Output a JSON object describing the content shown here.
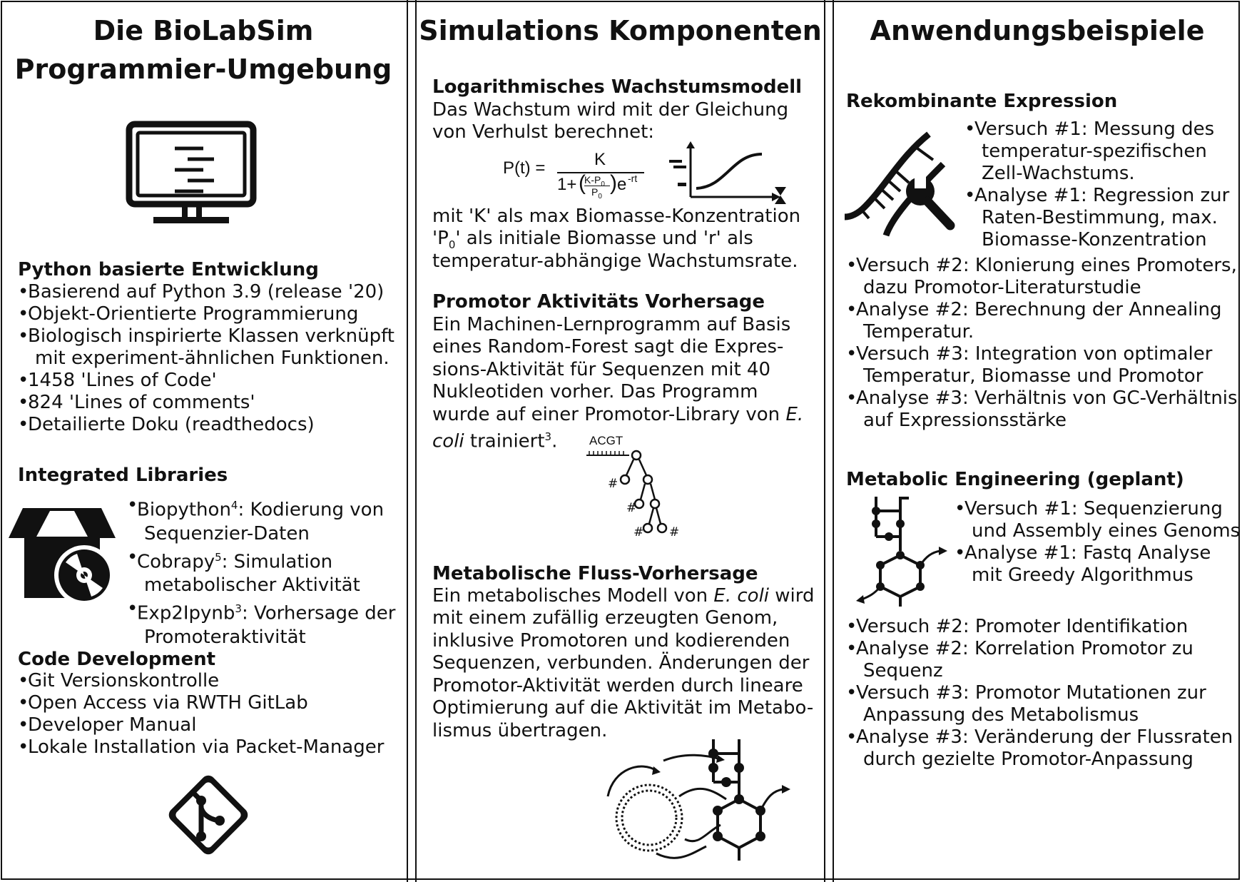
{
  "columns": [
    {
      "title_line1": "Die BioLabSim",
      "title_line2": "Programmier-Umgebung",
      "sections": [
        {
          "heading": "Python basierte Entwicklung",
          "items": [
            [
              "Basierend auf Python 3.9 (release '20)"
            ],
            [
              "Objekt-Orientierte Programmierung"
            ],
            [
              "Biologisch inspirierte Klassen verknüpft",
              "mit experiment-ähnlichen Funktionen."
            ],
            [
              "1458 'Lines of Code'"
            ],
            [
              "824 'Lines of comments'"
            ],
            [
              "Detailierte Doku (readthedocs)"
            ]
          ]
        },
        {
          "heading": "Integrated Libraries",
          "items": [
            [
              "Biopython",
              "4",
              ": Kodierung von",
              "Sequenzier-Daten"
            ],
            [
              "Cobrapy",
              "5",
              ": Simulation",
              "metabolischer Aktivität"
            ],
            [
              "Exp2Ipynb",
              "3",
              ": Vorhersage der",
              "Promoteraktivität"
            ]
          ]
        },
        {
          "heading": "Code Development",
          "items": [
            [
              "Git Versionskontrolle"
            ],
            [
              "Open Access via RWTH GitLab"
            ],
            [
              "Developer Manual"
            ],
            [
              "Lokale Installation via Packet-Manager"
            ]
          ]
        }
      ]
    },
    {
      "title": "Simulations Komponenten",
      "sections": [
        {
          "heading": "Logarithmisches Wachstumsmodell",
          "lines_before": [
            "Das Wachstum wird mit der Gleichung",
            "von Verhulst berechnet:"
          ],
          "lines_after": [
            "mit 'K' als max Biomasse-Konzentration",
            "als initiale Biomasse und 'r' als",
            "temperatur-abhängige Wachstumsrate."
          ],
          "p0_prefix": "'P",
          "p0_sub": "0",
          "p0_suffix": "'"
        },
        {
          "heading": "Promotor Aktivitäts Vorhersage",
          "lines": [
            "Ein Machinen-Lernprogramm auf Basis",
            "eines Random-Forest sagt die Expres-",
            "sions-Aktivität für Sequenzen mit 40",
            "Nukleotiden vorher. Das Programm",
            "wurde auf einer Promotor-Library von"
          ],
          "ecoli_e": "E.",
          "ecoli_coli": "coli",
          "trained": "trainiert",
          "ref": "3",
          "period": ".",
          "tree_label": "ACGT",
          "tree_hash": "#"
        },
        {
          "heading": "Metabolische Fluss-Vorhersage",
          "line1_pre": "Ein metabolisches Modell von",
          "line1_em": "E. coli",
          "line1_post": "wird",
          "lines": [
            "mit einem zufällig erzeugten Genom,",
            "inklusive Promotoren und kodierenden",
            "Sequenzen, verbunden. Änderungen der",
            "Promotor-Aktivität werden durch lineare",
            "Optimierung auf die Aktivität im Metabo-",
            "lismus übertragen."
          ]
        }
      ],
      "formula": {
        "lhs": "P(t) =",
        "numerator": "K",
        "one_plus": "1+",
        "inner_num": "K-P",
        "inner_den": "P",
        "sub0": "0",
        "exp_base": "e",
        "exp": "-rt"
      }
    },
    {
      "title": "Anwendungsbeispiele",
      "sections": [
        {
          "heading": "Rekombinante Expression",
          "items_right": [
            [
              "Versuch #1: Messung des",
              "temperatur-spezifischen",
              "Zell-Wachstums."
            ],
            [
              "Analyse #1: Regression zur",
              "Raten-Bestimmung, max.",
              "Biomasse-Konzentration"
            ]
          ],
          "items": [
            [
              "Versuch #2: Klonierung eines Promoters,",
              "dazu Promotor-Literaturstudie"
            ],
            [
              "Analyse #2: Berechnung der Annealing",
              "Temperatur."
            ],
            [
              "Versuch #3: Integration von optimaler",
              "Temperatur, Biomasse und Promotor"
            ],
            [
              "Analyse #3: Verhältnis von GC-Verhältnis",
              "auf Expressionsstärke"
            ]
          ]
        },
        {
          "heading": "Metabolic Engineering (geplant)",
          "items_right": [
            [
              "Versuch #1: Sequenzierung",
              "und Assembly eines Genoms"
            ],
            [
              "Analyse #1: Fastq Analyse",
              "mit Greedy Algorithmus"
            ]
          ],
          "items": [
            [
              "Versuch #2: Promoter Identifikation"
            ],
            [
              "Analyse #2: Korrelation Promotor zu",
              "Sequenz"
            ],
            [
              "Versuch #3: Promotor Mutationen zur",
              "Anpassung des Metabolismus"
            ],
            [
              "Analyse #3: Veränderung der Flussraten",
              "durch gezielte Promotor-Anpassung"
            ]
          ]
        }
      ]
    }
  ],
  "bullet": "•",
  "icons": [
    "monitor-icon",
    "package-disc-icon",
    "git-icon",
    "growth-curve-icon",
    "decision-tree-icon",
    "metabolic-network-icon",
    "dna-wrench-icon",
    "pathway-icon"
  ]
}
